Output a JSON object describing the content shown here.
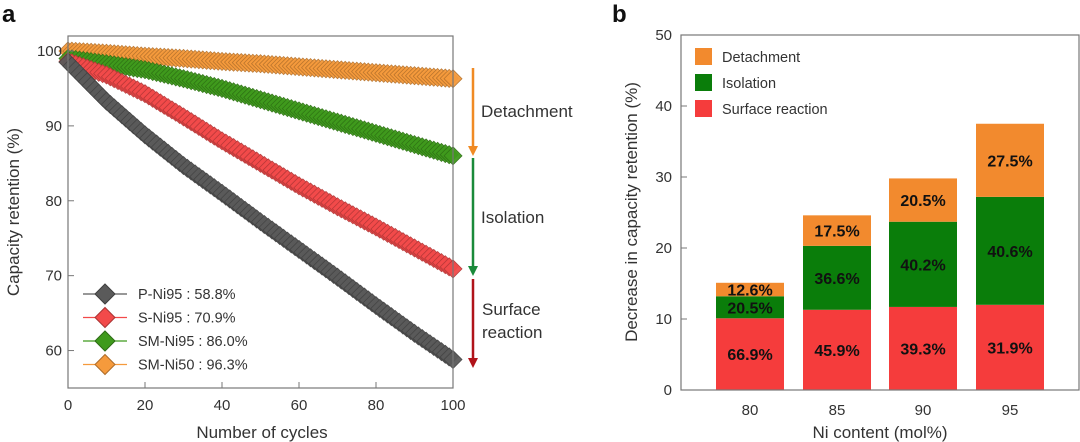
{
  "chart_data": [
    {
      "panel": "a",
      "type": "scatter",
      "title": "",
      "xlabel": "Number of cycles",
      "ylabel": "Capacity retention (%)",
      "xlim": [
        0,
        100
      ],
      "ylim": [
        55,
        102
      ],
      "xticks": [
        0,
        20,
        40,
        60,
        80,
        100
      ],
      "yticks": [
        60,
        70,
        80,
        90,
        100
      ],
      "grid": false,
      "legend_position": "bottom-left",
      "x": [
        0,
        10,
        20,
        30,
        40,
        50,
        60,
        70,
        80,
        90,
        100
      ],
      "series": [
        {
          "name": "P-Ni95",
          "legend": "P-Ni95 : 58.8%",
          "color": "#5a5a5a",
          "values": [
            98.5,
            93.3,
            88.8,
            84.7,
            81.0,
            77.2,
            73.5,
            69.8,
            66.0,
            62.3,
            58.8
          ]
        },
        {
          "name": "S-Ni95",
          "legend": "S-Ni95 : 70.9%",
          "color": "#f24a4a",
          "values": [
            98.6,
            96.8,
            94.3,
            91.2,
            88.0,
            85.0,
            82.0,
            79.2,
            76.5,
            73.7,
            70.9
          ]
        },
        {
          "name": "SM-Ni95",
          "legend": "SM-Ni95 : 86.0%",
          "color": "#3f9a1c",
          "values": [
            99.0,
            98.3,
            97.5,
            96.3,
            95.0,
            93.5,
            92.0,
            90.5,
            89.0,
            87.5,
            86.0
          ]
        },
        {
          "name": "SM-Ni50",
          "legend": "SM-Ni50 : 96.3%",
          "color": "#f59a3c",
          "values": [
            100.0,
            99.7,
            99.3,
            99.0,
            98.6,
            98.3,
            97.9,
            97.5,
            97.1,
            96.7,
            96.3
          ]
        }
      ],
      "annotations": [
        {
          "label": "Detachment",
          "color": "#f08a24"
        },
        {
          "label": "Isolation",
          "color": "#1a8a3a"
        },
        {
          "label": "Surface reaction",
          "lines": [
            "Surface",
            "reaction"
          ],
          "color": "#b0131a"
        }
      ]
    },
    {
      "panel": "b",
      "type": "bar",
      "stacked": true,
      "title": "",
      "xlabel": "Ni content (mol%)",
      "ylabel": "Decrease in capacity retention (%)",
      "ylim": [
        0,
        50
      ],
      "yticks": [
        0,
        10,
        20,
        30,
        40,
        50
      ],
      "grid": false,
      "legend_position": "top-left",
      "categories": [
        "80",
        "85",
        "90",
        "95"
      ],
      "series": [
        {
          "name": "Surface reaction",
          "color": "#f53c3c",
          "values": [
            10.1,
            11.3,
            11.7,
            12.0
          ],
          "labels": [
            "66.9%",
            "45.9%",
            "39.3%",
            "31.9%"
          ]
        },
        {
          "name": "Isolation",
          "color": "#0a7d0a",
          "values": [
            3.1,
            9.0,
            12.0,
            15.2
          ],
          "labels": [
            "20.5%",
            "36.6%",
            "40.2%",
            "40.6%"
          ]
        },
        {
          "name": "Detachment",
          "color": "#f28a2e",
          "values": [
            1.9,
            4.3,
            6.1,
            10.3
          ],
          "labels": [
            "12.6%",
            "17.5%",
            "20.5%",
            "27.5%"
          ]
        }
      ],
      "legend_order": [
        "Detachment",
        "Isolation",
        "Surface reaction"
      ]
    }
  ],
  "panel_labels": [
    "a",
    "b"
  ]
}
